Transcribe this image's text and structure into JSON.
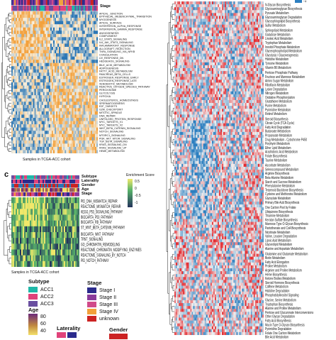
{
  "panel_c": {
    "letter": "c"
  },
  "panel_a": {
    "stage_label": "Stage",
    "xlabel": "Samples in TCGA-ACC cohort",
    "rows": [
      "APICAL_JUNCTION",
      "EPITHELIAL_MESENCHYMAL_TRANSITION",
      "MYOGENESIS",
      "APICAL_SURFACE",
      "INTERFERON_ALPHA_RESPONSE",
      "INTERFERON_GAMMA_RESPONSE",
      "ANGIOGENESIS",
      "COMPLEMENT",
      "IL2_STAT5_SIGNALING",
      "IL6_JAK_STAT3_SIGNALING",
      "INFLAMMATORY_RESPONSE",
      "ALLOGRAFT_REJECTION",
      "TNFA_SIGNALING_VIA_NFKB",
      "COAGULATION",
      "UV_RESPONSE_DN",
      "HEDGEHOG_SIGNALING",
      "BILE_ACID_METABOLISM",
      "ADIPOGENESIS",
      "FATTY_ACID_METABOLISM",
      "PANCREAS_BETA_CELLS",
      "ESTROGEN_RESPONSE_EARLY",
      "ESTROGEN_RESPONSE_LATE",
      "XENOBIOTIC_METABOLISM",
      "REACTIVE_OXYGEN_SPECIES_PATHWAY",
      "PEROXISOME",
      "GLYCOLYSIS",
      "HYPOXIA",
      "CHOLESTEROL_HOMEOSTASIS",
      "SPERMATOGENESIS",
      "E2F_TARGETS",
      "G2M_CHECKPOINT",
      "MITOTIC_SPINDLE",
      "DNA_REPAIR",
      "UNFOLDED_PROTEIN_RESPONSE",
      "MYC_TARGETS_V1",
      "MYC_TARGETS_V2",
      "WNT_BETA_CATENIN_SIGNALING",
      "NOTCH_SIGNALING",
      "MTORC1_SIGNALING",
      "PI3K_AKT_MTOR_SIGNALING",
      "TGF_BETA_SIGNALING",
      "KRAS_SIGNALING_DN",
      "KRAS_SIGNALING_UP",
      "HEME_METABOLISM"
    ]
  },
  "panel_b": {
    "legend_value": "-1",
    "rows": [
      "N-Glycan Biosynthesis",
      "Glycosaminoglycan Biosynthesis",
      "Pyruvate Metabolism",
      "Glycosaminoglycan Degradation",
      "Glycosphingolipid Biosynthesis",
      "Sulfur Metabolism",
      "Sphingolipid Metabolism",
      "Galactose Metabolism",
      "Linoleic Acid Metabolism",
      "Tryptophan Metabolism",
      "Inositol Phosphate Metabolism",
      "Glycerophospholipid Metabolism",
      "Glycolysis / Gluconeogenesis",
      "Histidine Metabolism",
      "Tyrosine Metabolism",
      "Vitamin B6 Metabolism",
      "Pentose Phosphate Pathway",
      "Fructose and Mannose Metabolism",
      "Amino Sugar Metabolism",
      "Riboflavin Metabolism",
      "Lysine Degradation",
      "Nitrogen Metabolism",
      "Oxidative Phosphorylation",
      "Glutathione Metabolism",
      "Purine Metabolism",
      "Pyrimidine Metabolism",
      "Retinol Metabolism",
      "Steroid Biosynthesis",
      "Citrate Cycle (TCA Cycle)",
      "Fatty Acid Degradation",
      "Butanoate Metabolism",
      "Propanoate Metabolism",
      "Drug Metabolism - Cytochrome P450",
      "Porphyrin Metabolism",
      "Ether Lipid Metabolism",
      "Arachidonic Acid Metabolism",
      "Folate Biosynthesis",
      "Taurine Metabolism",
      "Ascorbate Metabolism",
      "Selenocompound Metabolism",
      "Arginine Biosynthesis",
      "Beta-Alanine Metabolism",
      "Starch and Sucrose Metabolism",
      "Phenylalanine Metabolism",
      "Terpenoid Backbone Biosynthesis",
      "Cysteine and Methionine Metabolism",
      "Glyoxylate Metabolism",
      "Primary Bile Acid Biosynthesis",
      "One Carbon Pool by Folate",
      "Ubiquinone Biosynthesis",
      "Thiamine Metabolism",
      "Keratan Sulfate Biosynthesis",
      "Mannose Type O-Glycan Biosynthesis",
      "Pantothenate and CoA Biosynthesis",
      "Nicotinate Metabolism",
      "Valine, Leucine Degradation",
      "Lipoic Acid Metabolism",
      "Glycerolipid Metabolism",
      "Alanine and Aspartate Metabolism",
      "Glutamine and Glutamate Metabolism",
      "Biotin Metabolism",
      "Fatty Acid Elongation",
      "Proline Metabolism",
      "Arginine and Proline Metabolism",
      "Heme Biosynthesis",
      "Ketone Bodies Metabolism",
      "Steroid Hormone Biosynthesis",
      "Caffeine Metabolism",
      "Histidine Degradation",
      "Phosphatidylinositol Signaling",
      "Glycine, Serine Metabolism",
      "Tryptophan Biosynthesis",
      "Alanine and Proline Metabolism",
      "Pentose and Glucuronate Interconversions",
      "Other Glycan Degradation",
      "Fatty Acid Biosynthesis",
      "Mucin Type O-Glycan Biosynthesis",
      "Pyrimidine Degradation",
      "Folate One Carbon Metabolism",
      "Bile Acid Metabolism"
    ]
  },
  "panel_c_detail": {
    "annotation_labels": [
      "Subtype",
      "Laterality",
      "Gender",
      "Age",
      "Stage"
    ],
    "colorbar_title": "Enrichment Score",
    "colorbar_ticks": [
      "0.5",
      "0",
      "-0.5",
      "-1"
    ],
    "xlabel": "Samples in TCGA-ACC cohort",
    "rows": [
      "PID_DNA_MISMATCH_REPAIR",
      "REACTOME_MISMATCH_REPAIR",
      "KEGG_P53_SIGNALING_PATHWAY",
      "BIOCARTA_P53_PATHWAY",
      "BIOCARTA_RB_PATHWAY",
      "ST_WNT_BETA_CATENIN_PATHWAY",
      "BIOCARTA_WNT_PATHWAY",
      "TRNT_SIGNALING",
      "GO_CHROMATIN_REMODELING",
      "REACTOME_CHROMATIN_MODIFYING_ENZYMES",
      "REACTOME_SIGNALING_BY_NOTCH",
      "PID_NOTCH_PATHWAY"
    ]
  },
  "legend": {
    "subtype": {
      "title": "Subtype",
      "items": [
        {
          "label": "ACC1",
          "color": "#1fb8a8"
        },
        {
          "label": "ACC2",
          "color": "#e0427a"
        },
        {
          "label": "ACC3",
          "color": "#6a4fa0"
        }
      ]
    },
    "stage": {
      "title": "Stage",
      "items": [
        {
          "label": "Stage I",
          "color": "#2b2b8c"
        },
        {
          "label": "Stage II",
          "color": "#8a3a9a"
        },
        {
          "label": "Stage III",
          "color": "#d04a8a"
        },
        {
          "label": "Stage IV",
          "color": "#f2a03a"
        },
        {
          "label": "unknown",
          "color": "#cc2222"
        }
      ]
    },
    "age": {
      "title": "Age",
      "ticks": [
        "80",
        "60",
        "40"
      ]
    },
    "laterality": {
      "title": "Laterality"
    },
    "gender": {
      "title": "Gender"
    }
  },
  "colors": {
    "heat_high": "#e3272c",
    "heat_mid": "#f2f2f2",
    "heat_low": "#2c7fc0",
    "orange_high": "#f3a13c",
    "yellow_high": "#f1e86a",
    "green_mid": "#58b36a",
    "navy_low": "#24335c"
  }
}
